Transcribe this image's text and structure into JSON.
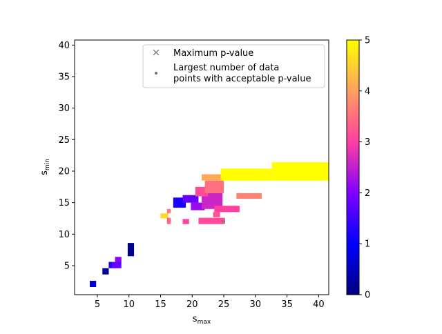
{
  "chart_data": {
    "type": "heatmap",
    "title": "",
    "xlabel_main": "s",
    "xlabel_sub": "max",
    "ylabel_main": "s",
    "ylabel_sub": "min",
    "xlim": [
      1.4,
      41.6
    ],
    "ylim": [
      0.4,
      40.8
    ],
    "xticks": [
      5,
      10,
      15,
      20,
      25,
      30,
      35,
      40
    ],
    "yticks": [
      5,
      10,
      15,
      20,
      25,
      30,
      35,
      40
    ],
    "grid": false,
    "colorbar": {
      "min": 0,
      "max": 5,
      "ticks": [
        0,
        1,
        2,
        3,
        4,
        5
      ],
      "colormap": "plasma-like",
      "colors": [
        "#00007f",
        "#0000ff",
        "#7f00ff",
        "#ff40a0",
        "#ffa060",
        "#ffff00"
      ]
    },
    "legend": {
      "placement": "top-right",
      "entries": [
        {
          "marker": "x",
          "label": "Maximum p-value"
        },
        {
          "marker": "dot",
          "label": "Largest number of data points with acceptable p-value"
        }
      ],
      "label_lines_2": [
        "Largest number of data",
        "points with acceptable p-value"
      ]
    },
    "cells": [
      {
        "x0": 3.8,
        "x1": 4.8,
        "y0": 1.6,
        "y1": 2.6,
        "value": 0.6
      },
      {
        "x0": 5.8,
        "x1": 6.8,
        "y0": 3.6,
        "y1": 4.6,
        "value": 0.2
      },
      {
        "x0": 6.8,
        "x1": 7.8,
        "y0": 4.6,
        "y1": 5.6,
        "value": 1.3
      },
      {
        "x0": 7.3,
        "x1": 8.8,
        "y0": 4.6,
        "y1": 5.6,
        "value": 1.8
      },
      {
        "x0": 7.8,
        "x1": 8.8,
        "y0": 5.6,
        "y1": 6.4,
        "value": 2.1
      },
      {
        "x0": 9.8,
        "x1": 10.8,
        "y0": 6.5,
        "y1": 8.6,
        "value": 0.1
      },
      {
        "x0": 15.0,
        "x1": 16.2,
        "y0": 12.5,
        "y1": 13.3,
        "value": 4.6
      },
      {
        "x0": 16.0,
        "x1": 16.6,
        "y0": 11.6,
        "y1": 12.6,
        "value": 3.4
      },
      {
        "x0": 16.0,
        "x1": 16.6,
        "y0": 13.3,
        "y1": 14.0,
        "value": 3.6
      },
      {
        "x0": 17.0,
        "x1": 19.0,
        "y0": 14.2,
        "y1": 15.8,
        "value": 1.2
      },
      {
        "x0": 18.5,
        "x1": 21.0,
        "y0": 15.0,
        "y1": 16.2,
        "value": 1.8
      },
      {
        "x0": 19.8,
        "x1": 22.0,
        "y0": 13.8,
        "y1": 15.0,
        "value": 2.2
      },
      {
        "x0": 21.5,
        "x1": 24.8,
        "y0": 14.0,
        "y1": 17.0,
        "value": 2.6
      },
      {
        "x0": 20.5,
        "x1": 22.5,
        "y0": 16.0,
        "y1": 17.5,
        "value": 3.1
      },
      {
        "x0": 22.0,
        "x1": 25.0,
        "y0": 16.5,
        "y1": 18.5,
        "value": 3.5
      },
      {
        "x0": 21.5,
        "x1": 25.0,
        "y0": 18.5,
        "y1": 19.5,
        "value": 4.1
      },
      {
        "x0": 23.5,
        "x1": 27.5,
        "y0": 13.5,
        "y1": 14.5,
        "value": 3.0
      },
      {
        "x0": 23.3,
        "x1": 24.4,
        "y0": 12.7,
        "y1": 13.5,
        "value": 3.2
      },
      {
        "x0": 18.5,
        "x1": 19.5,
        "y0": 11.6,
        "y1": 12.4,
        "value": 3.0
      },
      {
        "x0": 21.0,
        "x1": 25.2,
        "y0": 11.6,
        "y1": 12.6,
        "value": 3.1
      },
      {
        "x0": 27.0,
        "x1": 31.0,
        "y0": 15.6,
        "y1": 16.5,
        "value": 3.7
      },
      {
        "x0": 24.5,
        "x1": 32.6,
        "y0": 18.5,
        "y1": 20.4,
        "value": 5.0
      },
      {
        "x0": 32.6,
        "x1": 41.6,
        "y0": 18.5,
        "y1": 21.4,
        "value": 5.0
      },
      {
        "x0": 25.4,
        "x1": 30.0,
        "y0": 20.0,
        "y1": 20.4,
        "value": 5.0
      }
    ],
    "best_point": {
      "x": 25,
      "y": 12,
      "marker": "dot"
    }
  }
}
